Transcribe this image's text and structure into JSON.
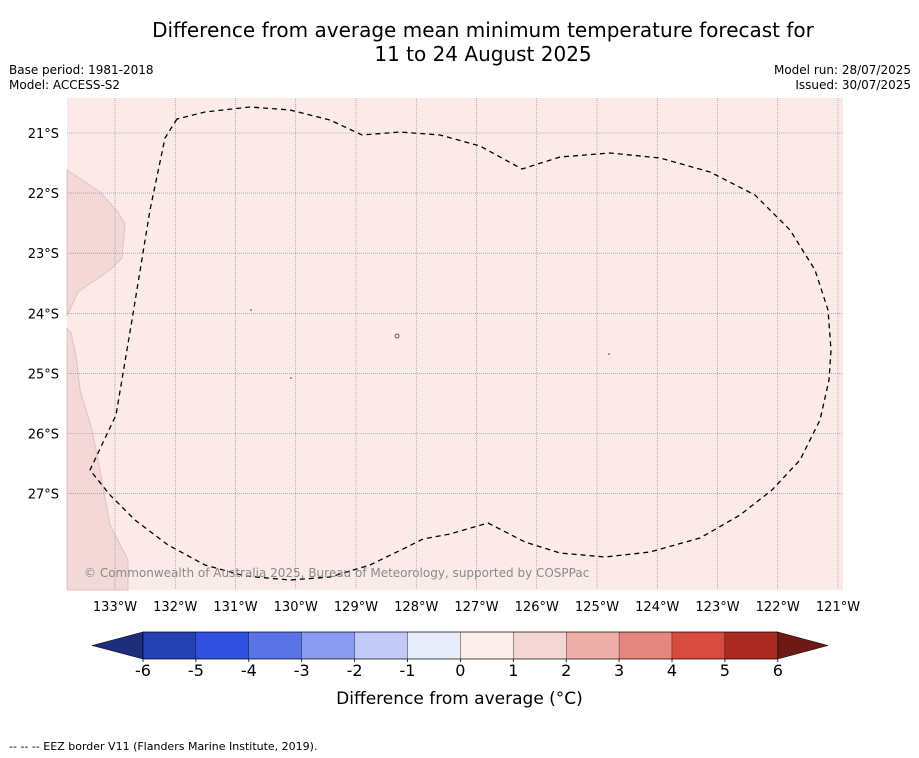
{
  "header": {
    "title_line1": "Difference from average mean minimum temperature forecast for",
    "title_line2": "11 to 24 August 2025",
    "base_period": "Base period: 1981-2018",
    "model": "Model: ACCESS-S2",
    "model_run": "Model run: 28/07/2025",
    "issued": "Issued: 30/07/2025"
  },
  "map": {
    "lat_labels": [
      "21°S",
      "22°S",
      "23°S",
      "24°S",
      "25°S",
      "26°S",
      "27°S"
    ],
    "lon_labels": [
      "133°W",
      "132°W",
      "131°W",
      "130°W",
      "129°W",
      "128°W",
      "127°W",
      "126°W",
      "125°W",
      "124°W",
      "123°W",
      "122°W",
      "121°W"
    ],
    "copyright": "© Commonwealth of Australia 2025, Bureau of Meteorology, supported by COSPPac",
    "colors": {
      "ocean_fill": "#fbeae8",
      "land_fill": "#f2d8d6",
      "land_edge": "#e2c2bf"
    }
  },
  "colorbar": {
    "tick_labels": [
      "-6",
      "-5",
      "-4",
      "-3",
      "-2",
      "-1",
      "0",
      "1",
      "2",
      "3",
      "4",
      "5",
      "6"
    ],
    "colors": [
      "#1e2d7c",
      "#2541b2",
      "#3050e0",
      "#5a73e6",
      "#8a9aee",
      "#c2c9f6",
      "#e9ecfb",
      "#fceeea",
      "#f4d7d4",
      "#edaea8",
      "#e6877f",
      "#d84b3f",
      "#aa2a22",
      "#6e1a14"
    ],
    "label": "Difference from average (°C)"
  },
  "footer": {
    "eez_note": "--  --  -- EEZ border V11 (Flanders Marine Institute, 2019)."
  }
}
